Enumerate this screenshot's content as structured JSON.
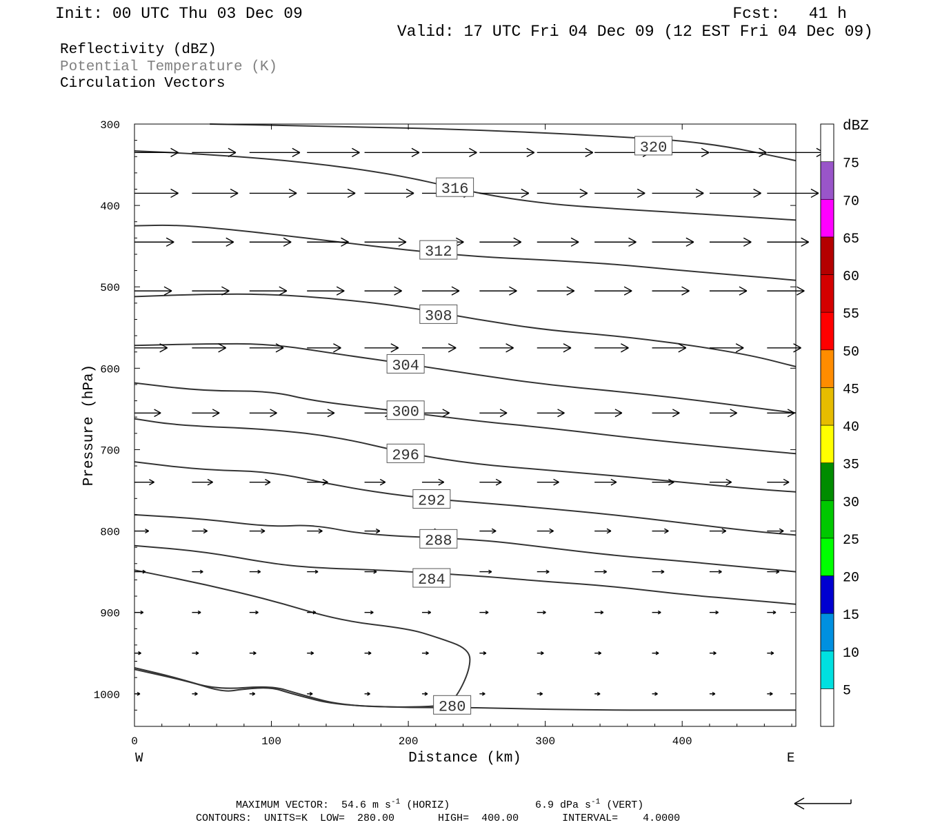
{
  "header": {
    "init": "Init: 00 UTC Thu 03 Dec 09",
    "fcst": "Fcst:   41 h",
    "valid": "Valid: 17 UTC Fri 04 Dec 09 (12 EST Fri 04 Dec 09)",
    "fields": [
      {
        "label": "Reflectivity (dBZ)",
        "color": "#000000"
      },
      {
        "label": "Potential Temperature (K)",
        "color": "#808080"
      },
      {
        "label": "Circulation Vectors",
        "color": "#000000"
      }
    ]
  },
  "footer": {
    "max_vector": "MAXIMUM VECTOR:  54.6 m s",
    "max_vector_horiz": "(HORIZ)",
    "max_vector_vert": "6.9 dPa s",
    "max_vector_vert_unit": "(VERT)",
    "exponent": "-1",
    "contours": "CONTOURS:  UNITS=K  LOW=  280.00       HIGH=  400.00       INTERVAL=    4.0000"
  },
  "chart_data": {
    "type": "line",
    "title": "",
    "xlabel": "Distance (km)",
    "ylabel": "Pressure (hPa)",
    "xlim": [
      0,
      483
    ],
    "ylim": [
      1040,
      300
    ],
    "x_ticks": [
      0,
      100,
      200,
      300,
      400
    ],
    "y_ticks": [
      300,
      400,
      500,
      600,
      700,
      800,
      900,
      1000
    ],
    "x_left_label": "W",
    "x_right_label": "E",
    "contour_units": "K",
    "contours": [
      {
        "name": "320",
        "label": "320",
        "label_at": [
          379,
          327
        ],
        "points": [
          [
            55,
            300
          ],
          [
            150,
            303
          ],
          [
            250,
            307
          ],
          [
            350,
            315
          ],
          [
            420,
            323
          ],
          [
            483,
            345
          ]
        ]
      },
      {
        "name": "316",
        "label": "316",
        "label_at": [
          234,
          378
        ],
        "points": [
          [
            0,
            333
          ],
          [
            50,
            337
          ],
          [
            100,
            343
          ],
          [
            150,
            352
          ],
          [
            200,
            365
          ],
          [
            250,
            385
          ],
          [
            300,
            398
          ],
          [
            350,
            404
          ],
          [
            420,
            411
          ],
          [
            483,
            418
          ]
        ]
      },
      {
        "name": "312",
        "label": "312",
        "label_at": [
          222,
          455
        ],
        "points": [
          [
            0,
            425
          ],
          [
            30,
            424
          ],
          [
            60,
            428
          ],
          [
            100,
            435
          ],
          [
            150,
            445
          ],
          [
            200,
            455
          ],
          [
            250,
            463
          ],
          [
            300,
            467
          ],
          [
            350,
            472
          ],
          [
            400,
            480
          ],
          [
            450,
            487
          ],
          [
            483,
            492
          ]
        ]
      },
      {
        "name": "308",
        "label": "308",
        "label_at": [
          222,
          534
        ],
        "points": [
          [
            0,
            512
          ],
          [
            50,
            509
          ],
          [
            100,
            509
          ],
          [
            150,
            515
          ],
          [
            200,
            525
          ],
          [
            250,
            540
          ],
          [
            300,
            553
          ],
          [
            350,
            560
          ],
          [
            400,
            570
          ],
          [
            450,
            584
          ],
          [
            483,
            598
          ]
        ]
      },
      {
        "name": "304",
        "label": "304",
        "label_at": [
          198,
          595
        ],
        "points": [
          [
            0,
            572
          ],
          [
            50,
            570
          ],
          [
            100,
            570
          ],
          [
            150,
            583
          ],
          [
            200,
            595
          ],
          [
            250,
            608
          ],
          [
            300,
            620
          ],
          [
            350,
            628
          ],
          [
            400,
            637
          ],
          [
            450,
            648
          ],
          [
            483,
            655
          ]
        ]
      },
      {
        "name": "300",
        "label": "300",
        "label_at": [
          198,
          652
        ],
        "points": [
          [
            0,
            618
          ],
          [
            50,
            628
          ],
          [
            100,
            628
          ],
          [
            130,
            640
          ],
          [
            180,
            650
          ],
          [
            250,
            665
          ],
          [
            300,
            673
          ],
          [
            350,
            683
          ],
          [
            400,
            692
          ],
          [
            450,
            700
          ],
          [
            483,
            705
          ]
        ]
      },
      {
        "name": "296",
        "label": "296",
        "label_at": [
          198,
          705
        ],
        "points": [
          [
            0,
            662
          ],
          [
            30,
            670
          ],
          [
            100,
            675
          ],
          [
            150,
            685
          ],
          [
            200,
            705
          ],
          [
            250,
            718
          ],
          [
            300,
            725
          ],
          [
            350,
            732
          ],
          [
            400,
            740
          ],
          [
            450,
            748
          ],
          [
            483,
            752
          ]
        ]
      },
      {
        "name": "292",
        "label": "292",
        "label_at": [
          217,
          761
        ],
        "points": [
          [
            0,
            715
          ],
          [
            50,
            725
          ],
          [
            100,
            727
          ],
          [
            150,
            745
          ],
          [
            200,
            758
          ],
          [
            250,
            765
          ],
          [
            300,
            772
          ],
          [
            350,
            780
          ],
          [
            400,
            790
          ],
          [
            450,
            800
          ],
          [
            483,
            805
          ]
        ]
      },
      {
        "name": "288",
        "label": "288",
        "label_at": [
          222,
          810
        ],
        "points": [
          [
            0,
            780
          ],
          [
            50,
            785
          ],
          [
            100,
            795
          ],
          [
            130,
            792
          ],
          [
            170,
            805
          ],
          [
            250,
            810
          ],
          [
            300,
            820
          ],
          [
            350,
            830
          ],
          [
            400,
            837
          ],
          [
            450,
            845
          ],
          [
            483,
            850
          ]
        ]
      },
      {
        "name": "284",
        "label": "284",
        "label_at": [
          217,
          858
        ],
        "points": [
          [
            0,
            818
          ],
          [
            50,
            825
          ],
          [
            100,
            840
          ],
          [
            130,
            845
          ],
          [
            180,
            848
          ],
          [
            250,
            855
          ],
          [
            300,
            862
          ],
          [
            350,
            868
          ],
          [
            400,
            878
          ],
          [
            450,
            885
          ],
          [
            483,
            890
          ]
        ]
      },
      {
        "name": "280",
        "label": "280",
        "label_at": [
          232,
          1014
        ],
        "points": [
          [
            0,
            848
          ],
          [
            50,
            865
          ],
          [
            100,
            885
          ],
          [
            150,
            910
          ],
          [
            200,
            920
          ],
          [
            220,
            930
          ],
          [
            245,
            945
          ],
          [
            245,
            970
          ],
          [
            235,
            1005
          ],
          [
            225,
            1017
          ],
          [
            150,
            1015
          ],
          [
            115,
            1000
          ],
          [
            100,
            992
          ],
          [
            80,
            994
          ],
          [
            65,
            998
          ],
          [
            40,
            985
          ],
          [
            0,
            970
          ]
        ]
      },
      {
        "name": "280-surface",
        "label": "",
        "points": [
          [
            0,
            968
          ],
          [
            30,
            980
          ],
          [
            60,
            995
          ],
          [
            100,
            990
          ],
          [
            120,
            1000
          ],
          [
            150,
            1014
          ],
          [
            200,
            1017
          ],
          [
            250,
            1017
          ],
          [
            300,
            1019
          ],
          [
            350,
            1020
          ],
          [
            400,
            1020
          ],
          [
            483,
            1020
          ]
        ]
      }
    ],
    "vectors": {
      "levels": [
        335,
        385,
        445,
        505,
        575,
        655,
        740,
        800,
        850,
        900,
        950,
        1000
      ],
      "x_positions": [
        0,
        42,
        84,
        126,
        168,
        210,
        252,
        294,
        336,
        378,
        420,
        462
      ],
      "length_scale_km_per_ms": 0.8,
      "u_ms": [
        [
          40,
          40,
          46,
          48,
          50,
          50,
          50,
          51,
          51,
          52,
          52,
          52
        ],
        [
          40,
          42,
          43,
          44,
          45,
          45,
          45,
          46,
          46,
          47,
          47,
          47
        ],
        [
          36,
          38,
          38,
          38,
          38,
          38,
          38,
          38,
          38,
          38,
          38,
          38
        ],
        [
          34,
          34,
          34,
          34,
          34,
          34,
          34,
          34,
          34,
          34,
          34,
          34
        ],
        [
          30,
          31,
          31,
          31,
          31,
          31,
          31,
          31,
          31,
          31,
          31,
          31
        ],
        [
          24,
          25,
          25,
          25,
          25,
          25,
          25,
          25,
          25,
          25,
          25,
          25
        ],
        [
          18,
          19,
          19,
          19,
          19,
          20,
          20,
          20,
          20,
          20,
          20,
          20
        ],
        [
          13,
          14,
          14,
          14,
          14,
          15,
          15,
          15,
          15,
          15,
          15,
          15
        ],
        [
          10,
          10,
          10,
          10,
          11,
          11,
          11,
          11,
          11,
          11,
          11,
          11
        ],
        [
          8,
          8,
          8,
          8,
          8,
          8,
          8,
          8,
          8,
          8,
          8,
          8
        ],
        [
          6,
          6,
          6,
          6,
          6,
          6,
          6,
          6,
          6,
          6,
          6,
          6
        ],
        [
          5,
          5,
          5,
          5,
          5,
          5,
          5,
          5,
          5,
          5,
          5,
          5
        ]
      ]
    },
    "colorbar": {
      "title": "dBZ",
      "labels": [
        "5",
        "10",
        "15",
        "20",
        "25",
        "30",
        "35",
        "40",
        "45",
        "50",
        "55",
        "60",
        "65",
        "70",
        "75"
      ],
      "colors": [
        "#ffffff",
        "#00e0e0",
        "#0090e0",
        "#0000d0",
        "#00ff00",
        "#00c800",
        "#008c00",
        "#ffff00",
        "#e6bc00",
        "#ff8c00",
        "#ff0000",
        "#d40000",
        "#b40000",
        "#ff00ff",
        "#9955c9",
        "#ffffff"
      ]
    },
    "reference_vector": {
      "direction": "west"
    }
  }
}
